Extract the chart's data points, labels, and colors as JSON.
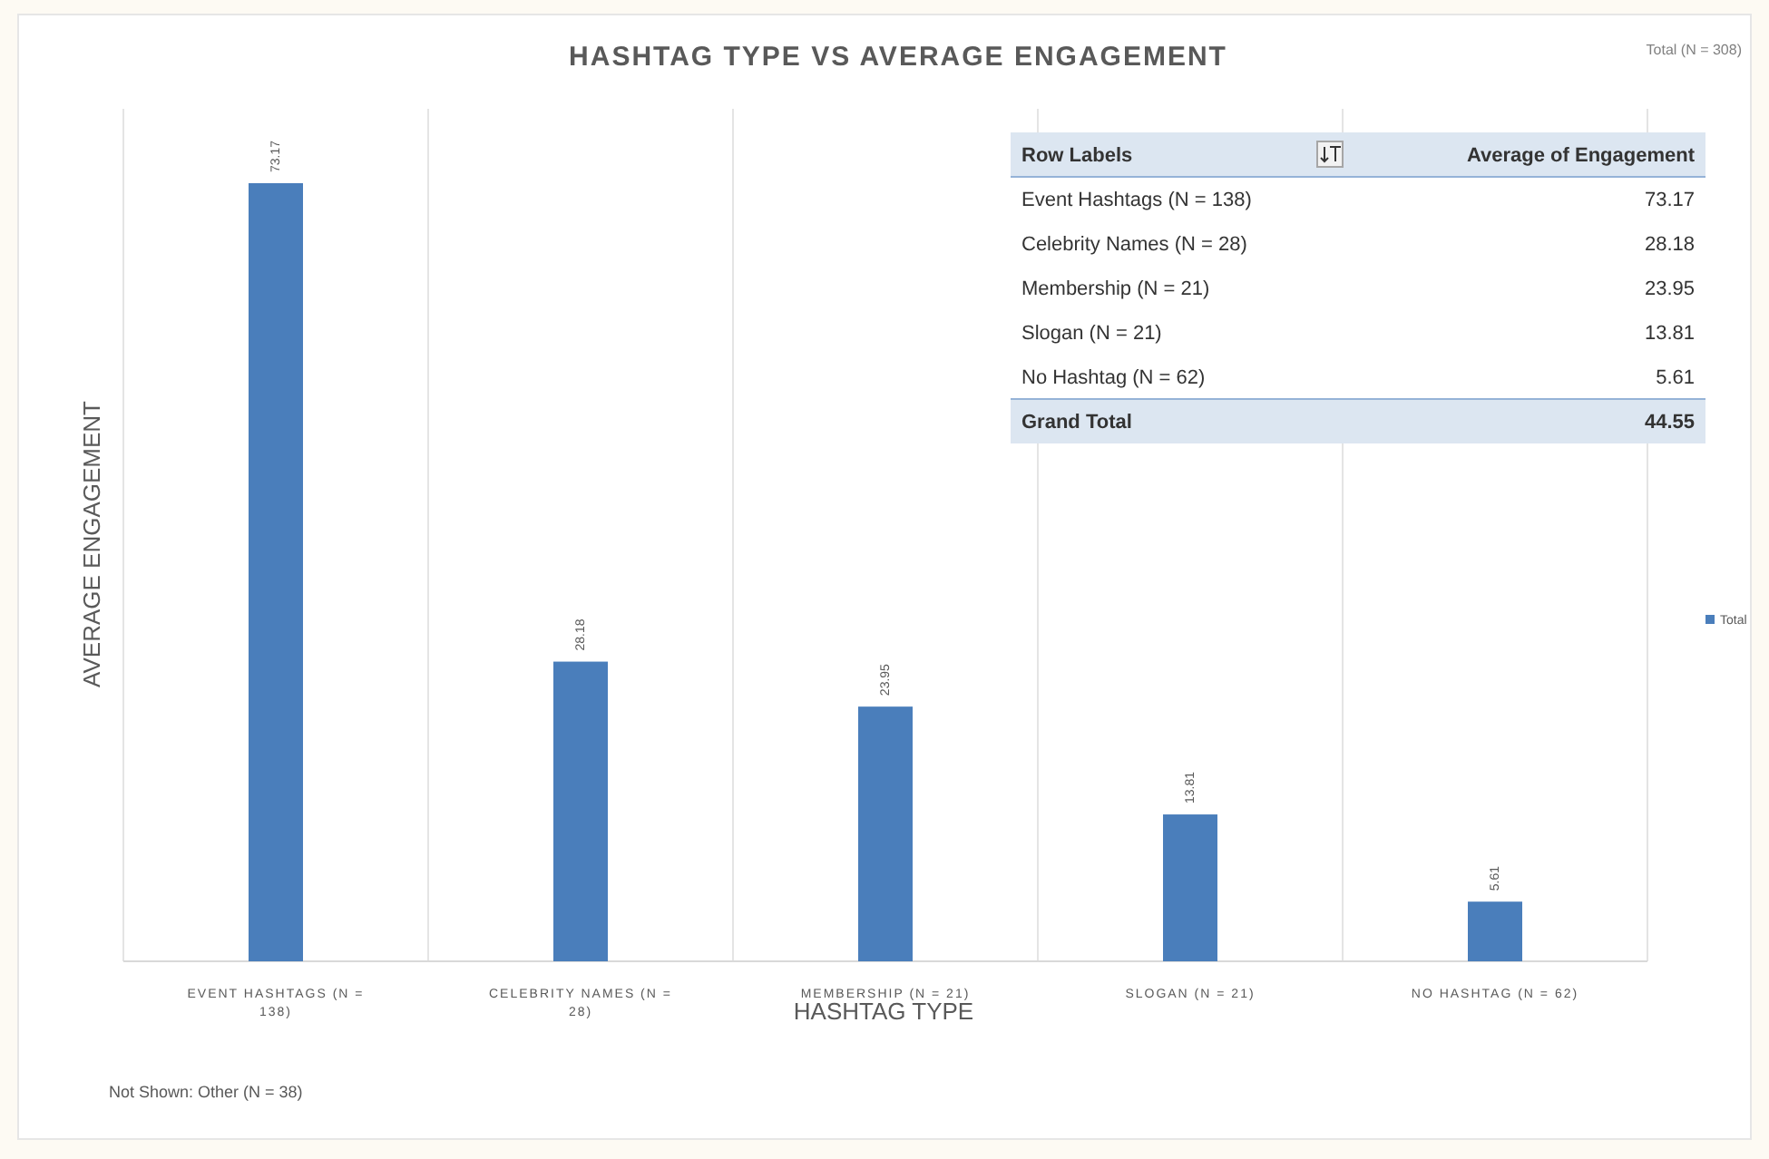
{
  "chart_data": {
    "type": "bar",
    "title": "HASHTAG TYPE VS AVERAGE ENGAGEMENT",
    "xlabel": "HASHTAG TYPE",
    "ylabel": "AVERAGE ENGAGEMENT",
    "categories": [
      "EVENT HASHTAGS (N = 138)",
      "CELEBRITY NAMES (N = 28)",
      "MEMBERSHIP (N = 21)",
      "SLOGAN (N = 21)",
      "NO HASHTAG (N = 62)"
    ],
    "series": [
      {
        "name": "Total",
        "color": "#4a7ebb",
        "values": [
          73.17,
          28.18,
          23.95,
          13.81,
          5.61
        ]
      }
    ],
    "data_labels": true,
    "grid": "x",
    "legend": "right",
    "annotations": [
      "Total (N = 308)",
      "Not Shown: Other (N = 38)",
      "Row Labels",
      "Average of Engagement",
      "Event Hashtags (N = 138)",
      "73.17",
      "Celebrity Names (N = 28)",
      "28.18",
      "Membership (N = 21)",
      "23.95",
      "Slogan (N = 21)",
      "13.81",
      "No Hashtag (N = 62)",
      "5.61",
      "Grand Total",
      "44.55"
    ]
  }
}
